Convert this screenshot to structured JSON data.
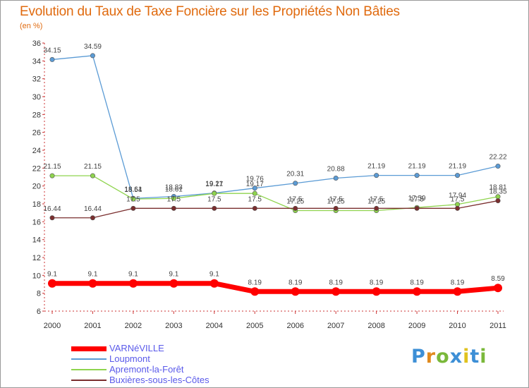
{
  "title": "Evolution du Taux de Taxe Foncière sur les Propriétés Non Bâties",
  "unit": "(en %)",
  "logo": {
    "text": "Proxiti",
    "letters": [
      "P",
      "r",
      "o",
      "x",
      "i",
      "t",
      "i"
    ],
    "colors": [
      "#3d8fd6",
      "#e08a1e",
      "#7ab83a",
      "#3d8fd6",
      "#e0c21e",
      "#3d8fd6",
      "#7ab83a"
    ]
  },
  "chart_data": {
    "type": "line",
    "title": "Evolution du Taux de Taxe Foncière sur les Propriétés Non Bâties",
    "ylabel": "(en %)",
    "xlabel": "",
    "x": [
      "2000",
      "2001",
      "2002",
      "2003",
      "2004",
      "2005",
      "2006",
      "2007",
      "2008",
      "2009",
      "2010",
      "2011"
    ],
    "ylim": [
      6,
      36
    ],
    "yticks": [
      6,
      8,
      10,
      12,
      14,
      16,
      18,
      20,
      22,
      24,
      26,
      28,
      30,
      32,
      34,
      36
    ],
    "grid": false,
    "legend": "bottom-left",
    "series": [
      {
        "name": "VARNéVILLE",
        "color": "#ff0000",
        "values": [
          9.1,
          9.1,
          9.1,
          9.1,
          9.1,
          8.19,
          8.19,
          8.19,
          8.19,
          8.19,
          8.19,
          8.59
        ],
        "labels": [
          "9.1",
          "9.1",
          "9.1",
          "9.1",
          "9.1",
          "8.19",
          "8.19",
          "8.19",
          "8.19",
          "8.19",
          "8.19",
          "8.59"
        ],
        "emphasis": true
      },
      {
        "name": "Loupmont",
        "color": "#5b9bd5",
        "values": [
          34.15,
          34.59,
          18.61,
          18.83,
          19.21,
          19.76,
          20.31,
          20.88,
          21.19,
          21.19,
          21.19,
          22.22
        ],
        "labels": [
          "34.15",
          "34.59",
          "18.61",
          "18.83",
          "19.21",
          "19.76",
          "20.31",
          "20.88",
          "21.19",
          "21.19",
          "21.19",
          "22.22"
        ]
      },
      {
        "name": "Apremont-la-Forêt",
        "color": "#8fd44e",
        "values": [
          21.15,
          21.15,
          18.54,
          18.61,
          19.17,
          19.17,
          17.25,
          17.25,
          17.25,
          17.59,
          17.94,
          18.81
        ],
        "labels": [
          "21.15",
          "21.15",
          "18.54",
          "18.61",
          "19.17",
          "19.17",
          "17.25",
          "17.25",
          "17.25",
          "17.59",
          "17.94",
          "18.81"
        ]
      },
      {
        "name": "Buxières-sous-les-Côtes",
        "color": "#7a2e2e",
        "values": [
          16.44,
          16.44,
          17.5,
          17.5,
          17.5,
          17.5,
          17.5,
          17.5,
          17.5,
          17.5,
          17.5,
          18.35
        ],
        "labels": [
          "16.44",
          "16.44",
          "17.5",
          "17.5",
          "17.5",
          "17.5",
          "17.5",
          "17.5",
          "17.5",
          "17.5",
          "17.5",
          "18.35"
        ]
      }
    ]
  }
}
